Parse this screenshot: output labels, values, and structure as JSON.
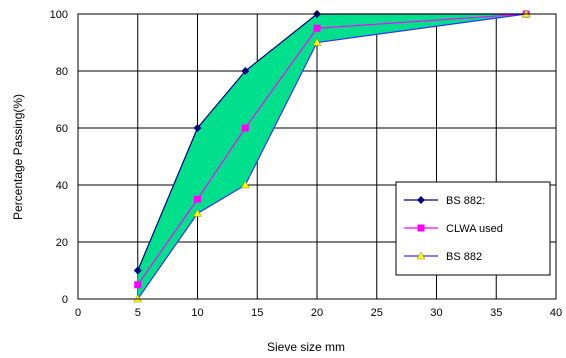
{
  "chart_data": {
    "type": "line",
    "xlabel": "Sieve size mm",
    "ylabel": "Percentage Passing(%)",
    "xlim": [
      0,
      40
    ],
    "ylim": [
      0,
      100
    ],
    "xticks": [
      0,
      5,
      10,
      15,
      20,
      25,
      30,
      35,
      40
    ],
    "yticks": [
      0,
      20,
      40,
      60,
      80,
      100
    ],
    "grid": true,
    "legend_position": "bottom-right",
    "fill_between": {
      "upper": "BS 882:",
      "lower": "BS 882",
      "color": "#00e08c"
    },
    "series": [
      {
        "name": "BS 882:",
        "color": "#000080",
        "marker": "diamond",
        "x": [
          5,
          10,
          14,
          20,
          37.5
        ],
        "y": [
          10,
          60,
          80,
          100,
          100
        ]
      },
      {
        "name": "CLWA used",
        "color": "#ff00ff",
        "marker": "square",
        "x": [
          5,
          10,
          14,
          20,
          37.5
        ],
        "y": [
          5,
          35,
          60,
          95,
          100
        ]
      },
      {
        "name": "BS 882",
        "color": "#3333ff",
        "marker": "triangle",
        "markerColor": "#ffff00",
        "x": [
          5,
          10,
          14,
          20,
          37.5
        ],
        "y": [
          0,
          30,
          40,
          90,
          100
        ]
      }
    ]
  }
}
